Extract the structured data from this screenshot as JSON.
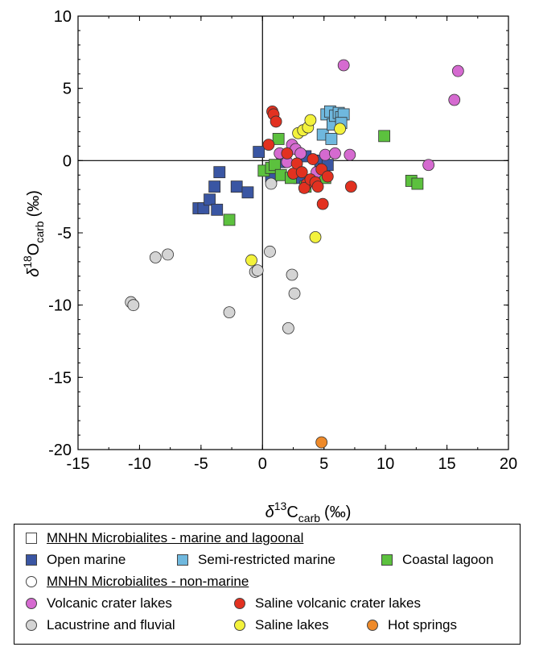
{
  "chart_data": {
    "type": "scatter",
    "xlabel": {
      "prefix": "δ",
      "sup": "13",
      "main": "C",
      "sub": "carb",
      "unit": "(‰)"
    },
    "ylabel": {
      "prefix": "δ",
      "sup": "18",
      "main": "O",
      "sub": "carb",
      "unit": "(‰)"
    },
    "xlim": [
      -15,
      20
    ],
    "ylim": [
      -20,
      10
    ],
    "xticks": [
      -15,
      -10,
      -5,
      0,
      5,
      10,
      15,
      20
    ],
    "yticks": [
      -20,
      -15,
      -10,
      -5,
      0,
      5,
      10
    ],
    "grid": false,
    "reference_lines": {
      "x": 0,
      "y": 0
    },
    "legend_position": "bottom",
    "legend_headings": [
      {
        "label": "MNHN Microbialites - marine and lagoonal",
        "marker": "square"
      },
      {
        "label": "MNHN Microbialites - non-marine",
        "marker": "circle"
      }
    ],
    "series": [
      {
        "name": "Open marine",
        "marker": "square",
        "color": "#3a56a3",
        "points": [
          [
            -5.2,
            -3.3
          ],
          [
            -4.8,
            -3.3
          ],
          [
            -4.3,
            -2.7
          ],
          [
            -3.9,
            -1.8
          ],
          [
            -3.7,
            -3.4
          ],
          [
            -3.5,
            -0.8
          ],
          [
            -2.1,
            -1.8
          ],
          [
            -1.2,
            -2.2
          ],
          [
            -0.3,
            0.6
          ],
          [
            0.7,
            -1.1
          ],
          [
            1.6,
            -0.1
          ],
          [
            3.0,
            -1.2
          ],
          [
            3.5,
            0.3
          ],
          [
            4.7,
            0.0
          ],
          [
            5.0,
            -0.6
          ],
          [
            5.3,
            -0.3
          ]
        ]
      },
      {
        "name": "Semi-restricted marine",
        "marker": "square",
        "color": "#6fb8de",
        "points": [
          [
            4.9,
            1.8
          ],
          [
            5.2,
            3.2
          ],
          [
            5.5,
            3.4
          ],
          [
            5.7,
            2.5
          ],
          [
            5.9,
            3.1
          ],
          [
            6.2,
            3.3
          ],
          [
            6.4,
            3.0
          ],
          [
            6.6,
            3.2
          ],
          [
            5.6,
            1.5
          ],
          [
            6.4,
            2.6
          ]
        ]
      },
      {
        "name": "Coastal lagoon",
        "marker": "square",
        "color": "#5cc13e",
        "points": [
          [
            -2.7,
            -4.1
          ],
          [
            0.1,
            -0.7
          ],
          [
            0.7,
            -0.5
          ],
          [
            1.0,
            -0.3
          ],
          [
            1.3,
            1.5
          ],
          [
            1.5,
            -1.0
          ],
          [
            2.3,
            -1.2
          ],
          [
            3.5,
            -1.8
          ],
          [
            5.1,
            -1.2
          ],
          [
            9.9,
            1.7
          ],
          [
            12.1,
            -1.4
          ],
          [
            12.6,
            -1.6
          ]
        ]
      },
      {
        "name": "Volcanic crater lakes",
        "marker": "circle",
        "color": "#d56ad0",
        "points": [
          [
            1.4,
            0.5
          ],
          [
            2.0,
            -0.1
          ],
          [
            2.4,
            1.1
          ],
          [
            2.7,
            0.8
          ],
          [
            3.1,
            0.5
          ],
          [
            4.4,
            -0.8
          ],
          [
            5.1,
            0.4
          ],
          [
            5.9,
            0.5
          ],
          [
            6.6,
            6.6
          ],
          [
            7.1,
            0.4
          ],
          [
            13.5,
            -0.3
          ],
          [
            15.6,
            4.2
          ],
          [
            15.9,
            6.2
          ]
        ]
      },
      {
        "name": "Saline volcanic crater lakes",
        "marker": "circle",
        "color": "#e23120",
        "points": [
          [
            0.5,
            1.1
          ],
          [
            0.8,
            3.4
          ],
          [
            0.9,
            3.2
          ],
          [
            1.1,
            2.7
          ],
          [
            2.0,
            0.5
          ],
          [
            2.5,
            -0.9
          ],
          [
            2.8,
            -0.2
          ],
          [
            3.2,
            -0.8
          ],
          [
            3.6,
            -1.6
          ],
          [
            3.4,
            -1.9
          ],
          [
            3.9,
            -1.3
          ],
          [
            4.3,
            -1.5
          ],
          [
            4.5,
            -1.8
          ],
          [
            4.8,
            -0.6
          ],
          [
            4.9,
            -3.0
          ],
          [
            5.3,
            -1.1
          ],
          [
            7.2,
            -1.8
          ],
          [
            4.1,
            0.1
          ]
        ]
      },
      {
        "name": "Lacustrine and fluvial",
        "marker": "circle",
        "color": "#d4d4d4",
        "points": [
          [
            -10.7,
            -9.8
          ],
          [
            -10.5,
            -10.0
          ],
          [
            -8.7,
            -6.7
          ],
          [
            -7.7,
            -6.5
          ],
          [
            -2.7,
            -10.5
          ],
          [
            -0.6,
            -7.7
          ],
          [
            -0.4,
            -7.6
          ],
          [
            0.6,
            -6.3
          ],
          [
            0.7,
            -1.6
          ],
          [
            2.1,
            -11.6
          ],
          [
            2.4,
            -7.9
          ],
          [
            2.6,
            -9.2
          ]
        ]
      },
      {
        "name": "Saline lakes",
        "marker": "circle",
        "color": "#f3f23c",
        "points": [
          [
            -0.9,
            -6.9
          ],
          [
            2.9,
            1.9
          ],
          [
            3.3,
            2.1
          ],
          [
            3.7,
            2.3
          ],
          [
            3.9,
            2.8
          ],
          [
            4.3,
            -5.3
          ],
          [
            6.3,
            2.2
          ]
        ]
      },
      {
        "name": "Hot springs",
        "marker": "circle",
        "color": "#ee8a2a",
        "points": [
          [
            4.8,
            -19.5
          ]
        ]
      }
    ]
  }
}
